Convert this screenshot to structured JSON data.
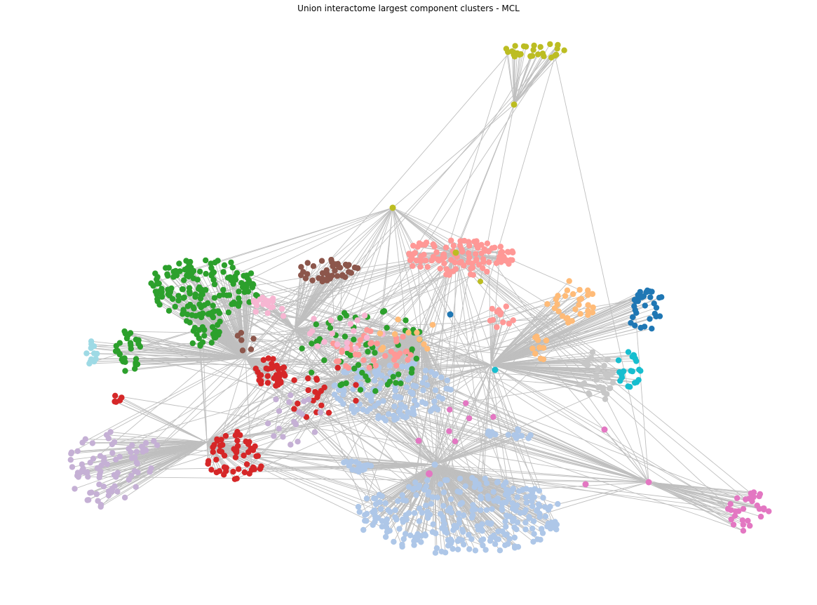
{
  "title": "Union interactome largest component clusters - MCL",
  "chart_data": {
    "type": "network",
    "title": "Union interactome largest component clusters - MCL",
    "edge_color": "#bfbfbf",
    "clusters": [
      {
        "color": "#2ca02c",
        "approx_nodes": 260
      },
      {
        "color": "#aec7e8",
        "approx_nodes": 420
      },
      {
        "color": "#ff9896",
        "approx_nodes": 150
      },
      {
        "color": "#d62728",
        "approx_nodes": 110
      },
      {
        "color": "#c5b0d5",
        "approx_nodes": 90
      },
      {
        "color": "#8c564b",
        "approx_nodes": 45
      },
      {
        "color": "#f7b6d2",
        "approx_nodes": 30
      },
      {
        "color": "#ffbb78",
        "approx_nodes": 45
      },
      {
        "color": "#1f77b4",
        "approx_nodes": 35
      },
      {
        "color": "#17becf",
        "approx_nodes": 25
      },
      {
        "color": "#c7c7c7",
        "approx_nodes": 30
      },
      {
        "color": "#bcbd22",
        "approx_nodes": 25
      },
      {
        "color": "#e377c2",
        "approx_nodes": 30
      },
      {
        "color": "#9edae5",
        "approx_nodes": 12
      }
    ]
  }
}
